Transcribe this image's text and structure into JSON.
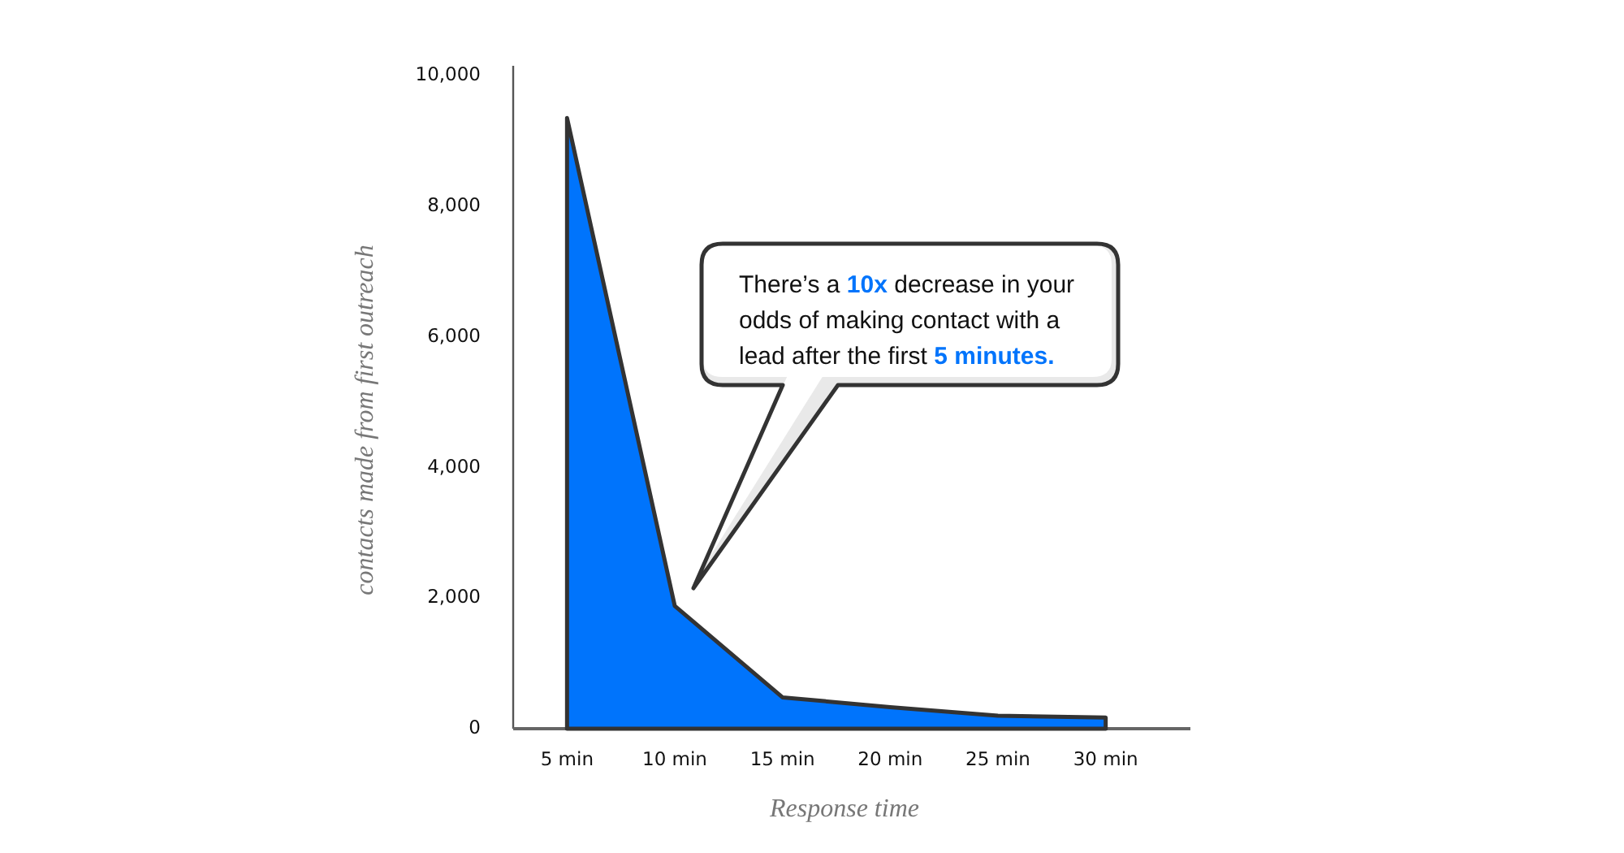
{
  "chart_data": {
    "type": "area",
    "xlabel": "Response time",
    "ylabel": "contacts made from first outreach",
    "categories": [
      "5 min",
      "10 min",
      "15 min",
      "20 min",
      "25 min",
      "30 min"
    ],
    "values": [
      9350,
      1880,
      480,
      330,
      200,
      170
    ],
    "color": "#0074fc",
    "ylim": [
      0,
      10000
    ],
    "yticks": [
      0,
      {
        "value": 2000,
        "label": "2,000"
      },
      {
        "value": 4000,
        "label": "4,000"
      },
      {
        "value": 6000,
        "label": "6,000"
      },
      {
        "value": 8000,
        "label": "8,000"
      },
      {
        "value": 10000,
        "label": "10,000"
      }
    ],
    "annotations": [
      "There’s a 10x decrease in your odds of making contact with a lead after the first 5 minutes."
    ]
  }
}
